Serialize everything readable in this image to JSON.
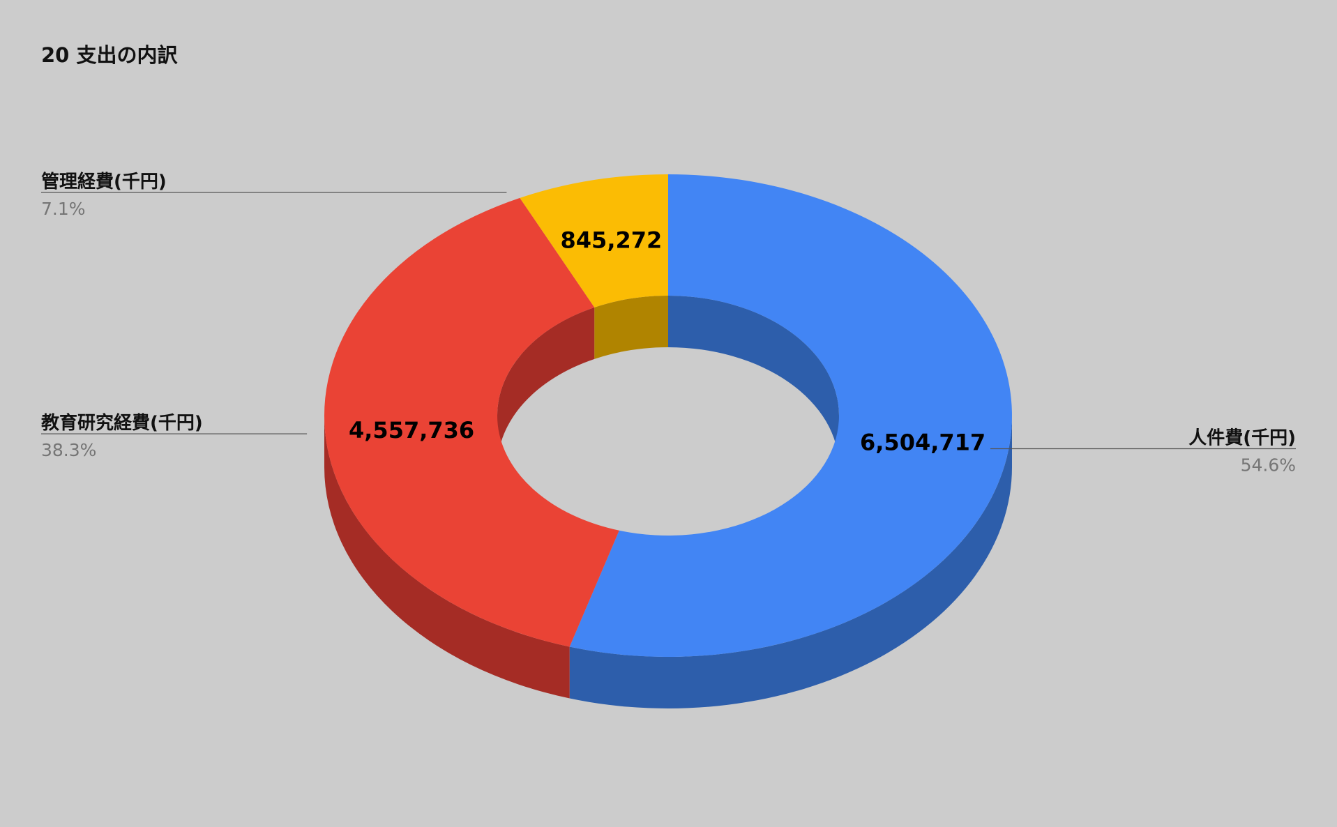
{
  "chart_data": {
    "type": "pie",
    "variant": "3d-donut",
    "title": "20 支出の内訳",
    "slices": [
      {
        "label": "人件費(千円)",
        "value": 6504717,
        "value_label": "6,504,717",
        "percent_label": "54.6%",
        "color": "#4285f4",
        "side_color": "#2d5eab"
      },
      {
        "label": "教育研究経費(千円)",
        "value": 4557736,
        "value_label": "4,557,736",
        "percent_label": "38.3%",
        "color": "#ea4335",
        "side_color": "#a52c25"
      },
      {
        "label": "管理経費(千円)",
        "value": 845272,
        "value_label": "845,272",
        "percent_label": "7.1%",
        "color": "#fbbc04",
        "side_color": "#b08400"
      }
    ],
    "legend": "none"
  },
  "colors": {
    "background": "#cccccc",
    "leader_line": "#555555"
  }
}
